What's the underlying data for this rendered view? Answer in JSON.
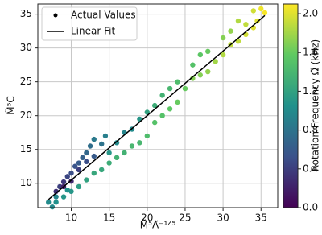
{
  "chart_data": {
    "type": "scatter",
    "xlabel": "M̃⁵Λ̃⁻¹ᐟ⁵",
    "ylabel": "M̃⁵C",
    "xlim": [
      5.6,
      37.2
    ],
    "ylim": [
      6.4,
      36.5
    ],
    "xticks": [
      10,
      15,
      20,
      25,
      30,
      35
    ],
    "yticks": [
      10,
      15,
      20,
      25,
      30,
      35
    ],
    "grid": true,
    "legend": "upper left",
    "colormap": "viridis",
    "colorbar_label": "Rotation Frequency Ω̃ (kHz)",
    "clim": [
      0,
      2.1
    ],
    "cticks": [
      {
        "value": 0,
        "label": "0.0"
      },
      {
        "value": 0.4,
        "label": "0.4"
      },
      {
        "value": 0.8,
        "label": "0.8"
      },
      {
        "value": 1.2,
        "label": "1.2"
      },
      {
        "value": 1.6,
        "label": "1.6"
      },
      {
        "value": 2.0,
        "label": "2.0"
      }
    ],
    "series": [
      {
        "name": "Actual Values",
        "type": "scatter",
        "color": "#000000",
        "x": [
          8,
          8.5,
          9,
          9.5,
          10,
          10.5,
          11,
          11.5,
          12,
          12.5,
          13,
          9,
          10,
          11,
          12,
          13,
          14,
          14.5,
          7.5,
          8,
          9,
          10,
          11,
          12,
          13,
          14,
          15,
          16,
          17,
          18,
          19,
          20,
          15,
          16,
          17,
          18,
          19,
          20,
          21,
          22,
          23,
          24,
          21,
          22,
          23,
          24,
          25,
          26,
          27,
          28,
          26,
          27,
          28,
          29,
          30,
          31,
          30,
          31,
          32,
          33,
          34,
          32,
          33,
          34,
          35,
          35.5,
          34.5,
          7,
          8,
          9.5
        ],
        "values": [
          8.8,
          9.5,
          10.2,
          11,
          11.5,
          12.5,
          13,
          13.8,
          14.5,
          15.5,
          16.5,
          9.5,
          10.3,
          12,
          13.2,
          14,
          15.8,
          17,
          6.5,
          7.2,
          8,
          8.8,
          9.5,
          10.5,
          11.5,
          12,
          13,
          13.8,
          14.5,
          15.5,
          16,
          17,
          14.5,
          16,
          17.5,
          18,
          19.5,
          20.5,
          19,
          20,
          21,
          22,
          21.5,
          23,
          24,
          25,
          24,
          25.5,
          26,
          26.5,
          27.5,
          29,
          29.5,
          28,
          29,
          30.5,
          31.5,
          32.5,
          31,
          32,
          33,
          34,
          33.5,
          35.5,
          35.8,
          35.2,
          34,
          7.2,
          8,
          9
        ],
        "c": [
          0.3,
          0.4,
          0.35,
          0.45,
          0.5,
          0.55,
          0.6,
          0.65,
          0.7,
          0.75,
          0.85,
          0.2,
          0.25,
          0.4,
          0.5,
          0.6,
          0.8,
          0.9,
          1.0,
          1.05,
          1.1,
          1.1,
          1.15,
          1.2,
          1.25,
          1.25,
          1.3,
          1.35,
          1.35,
          1.4,
          1.4,
          1.45,
          1.1,
          1.0,
          0.95,
          1.0,
          1.1,
          1.2,
          1.5,
          1.5,
          1.55,
          1.6,
          1.3,
          1.35,
          1.4,
          1.45,
          1.6,
          1.7,
          1.7,
          1.75,
          1.5,
          1.55,
          1.6,
          1.8,
          1.85,
          1.9,
          1.7,
          1.75,
          1.9,
          1.95,
          2.0,
          1.85,
          1.9,
          1.95,
          2.05,
          2.08,
          2.0,
          1.0,
          0.95,
          1.05
        ]
      },
      {
        "name": "Linear Fit",
        "type": "line",
        "color": "#000000",
        "x": [
          7,
          35.5
        ],
        "values": [
          7.6,
          34.8
        ]
      }
    ]
  }
}
